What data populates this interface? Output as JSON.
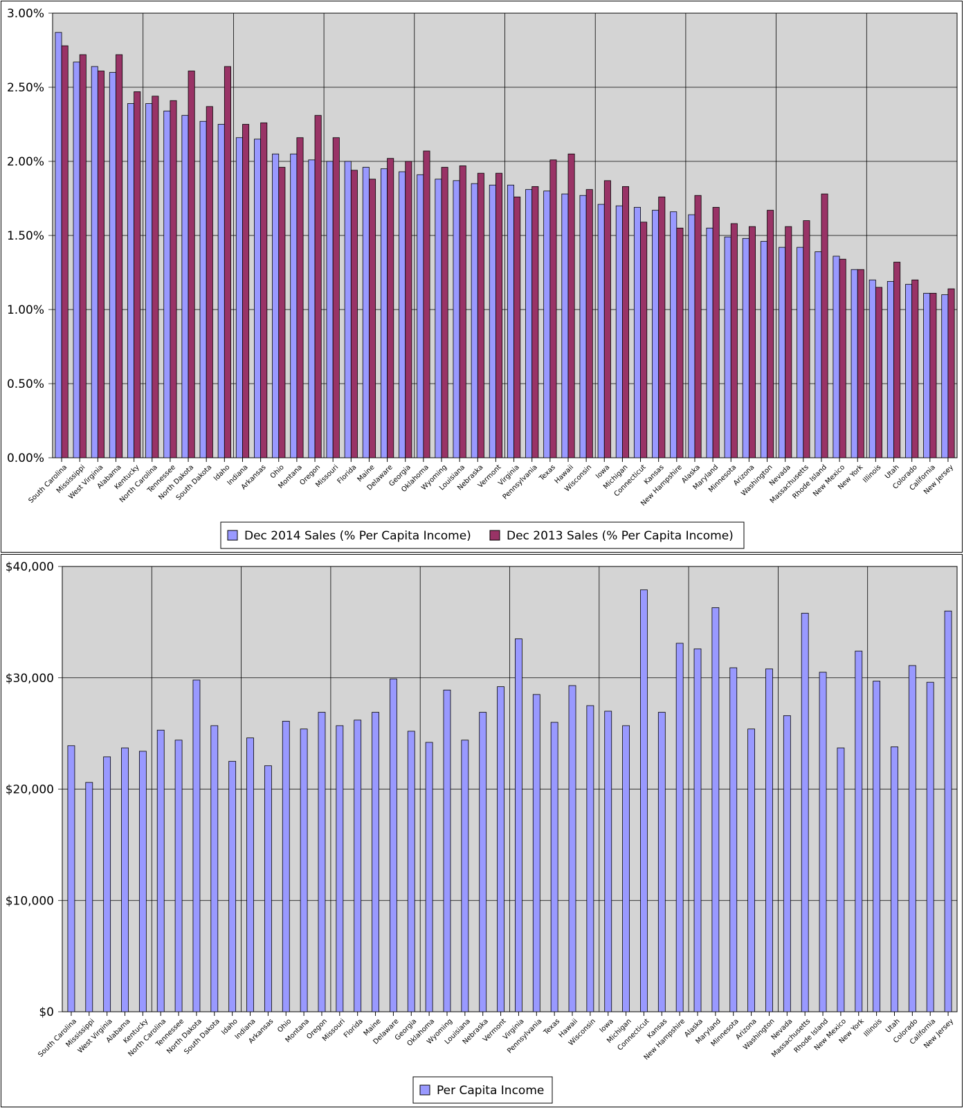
{
  "colors": {
    "sales_2014": "#9999ff",
    "sales_2013": "#993366",
    "plot_bg": "#d4d4d4",
    "gridline": "#000000"
  },
  "chart_data": [
    {
      "type": "bar",
      "ylim": [
        0,
        0.03
      ],
      "y_ticks": [
        "0.00%",
        "0.50%",
        "1.00%",
        "1.50%",
        "2.00%",
        "2.50%",
        "3.00%"
      ],
      "grid": true,
      "legend_position": "bottom",
      "categories": [
        "South Carolina",
        "Mississippi",
        "West Virginia",
        "Alabama",
        "Kentucky",
        "North Carolina",
        "Tennessee",
        "North Dakota",
        "South Dakota",
        "Idaho",
        "Indiana",
        "Arkansas",
        "Ohio",
        "Montana",
        "Oregon",
        "Missouri",
        "Florida",
        "Maine",
        "Delaware",
        "Georgia",
        "Oklahoma",
        "Wyoming",
        "Louisiana",
        "Nebraska",
        "Vermont",
        "Virginia",
        "Pennsylvania",
        "Texas",
        "Hawaii",
        "Wisconsin",
        "Iowa",
        "Michigan",
        "Connecticut",
        "Kansas",
        "New Hampshire",
        "Alaska",
        "Maryland",
        "Minnesota",
        "Arizona",
        "Washington",
        "Nevada",
        "Massachusetts",
        "Rhode Island",
        "New Mexico",
        "New York",
        "Illinois",
        "Utah",
        "Colorado",
        "California",
        "New Jersey"
      ],
      "series": [
        {
          "name": "Dec 2014 Sales (% Per Capita Income)",
          "color": "#9999ff",
          "values": [
            0.0287,
            0.0267,
            0.0264,
            0.026,
            0.0239,
            0.0239,
            0.0234,
            0.0231,
            0.0227,
            0.0225,
            0.0216,
            0.0215,
            0.0205,
            0.0205,
            0.0201,
            0.02,
            0.02,
            0.0196,
            0.0195,
            0.0193,
            0.0191,
            0.0188,
            0.0187,
            0.0185,
            0.0184,
            0.0184,
            0.0181,
            0.018,
            0.0178,
            0.0177,
            0.0171,
            0.017,
            0.0169,
            0.0167,
            0.0166,
            0.0164,
            0.0155,
            0.0149,
            0.0148,
            0.0146,
            0.0142,
            0.0142,
            0.0139,
            0.0136,
            0.0127,
            0.012,
            0.0119,
            0.0117,
            0.0111,
            0.011
          ]
        },
        {
          "name": "Dec 2013 Sales (% Per Capita Income)",
          "color": "#993366",
          "values": [
            0.0278,
            0.0272,
            0.0261,
            0.0272,
            0.0247,
            0.0244,
            0.0241,
            0.0261,
            0.0237,
            0.0264,
            0.0225,
            0.0226,
            0.0196,
            0.0216,
            0.0231,
            0.0216,
            0.0194,
            0.0188,
            0.0202,
            0.02,
            0.0207,
            0.0196,
            0.0197,
            0.0192,
            0.0192,
            0.0176,
            0.0183,
            0.0201,
            0.0205,
            0.0181,
            0.0187,
            0.0183,
            0.0159,
            0.0176,
            0.0155,
            0.0177,
            0.0169,
            0.0158,
            0.0156,
            0.0167,
            0.0156,
            0.016,
            0.0178,
            0.0134,
            0.0127,
            0.0115,
            0.0132,
            0.012,
            0.0111,
            0.0114
          ]
        }
      ]
    },
    {
      "type": "bar",
      "ylim": [
        0,
        40000
      ],
      "y_ticks": [
        "$0",
        "$10,000",
        "$20,000",
        "$30,000",
        "$40,000"
      ],
      "grid": true,
      "legend_position": "bottom",
      "categories": [
        "South Carolina",
        "Mississippi",
        "West Virginia",
        "Alabama",
        "Kentucky",
        "North Carolina",
        "Tennessee",
        "North Dakota",
        "South Dakota",
        "Idaho",
        "Indiana",
        "Arkansas",
        "Ohio",
        "Montana",
        "Oregon",
        "Missouri",
        "Florida",
        "Maine",
        "Delaware",
        "Georgia",
        "Oklahoma",
        "Wyoming",
        "Louisiana",
        "Nebraska",
        "Vermont",
        "Virginia",
        "Pennsylvania",
        "Texas",
        "Hawaii",
        "Wisconsin",
        "Iowa",
        "Michigan",
        "Connecticut",
        "Kansas",
        "New Hampshire",
        "Alaska",
        "Maryland",
        "Minnesota",
        "Arizona",
        "Washington",
        "Nevada",
        "Massachusetts",
        "Rhode Island",
        "New Mexico",
        "New York",
        "Illinois",
        "Utah",
        "Colorado",
        "California",
        "New Jersey"
      ],
      "series": [
        {
          "name": "Per Capita Income",
          "color": "#9999ff",
          "values": [
            23900,
            20600,
            22900,
            23700,
            23400,
            25300,
            24400,
            29800,
            25700,
            22500,
            24600,
            22100,
            26100,
            25400,
            26900,
            25700,
            26200,
            26900,
            29900,
            25200,
            24200,
            28900,
            24400,
            26900,
            29200,
            33500,
            28500,
            26000,
            29300,
            27500,
            27000,
            25700,
            37900,
            26900,
            33100,
            32600,
            36300,
            30900,
            25400,
            30800,
            26600,
            35800,
            30500,
            23700,
            32400,
            29700,
            23800,
            31100,
            29600,
            36000
          ]
        }
      ]
    }
  ]
}
